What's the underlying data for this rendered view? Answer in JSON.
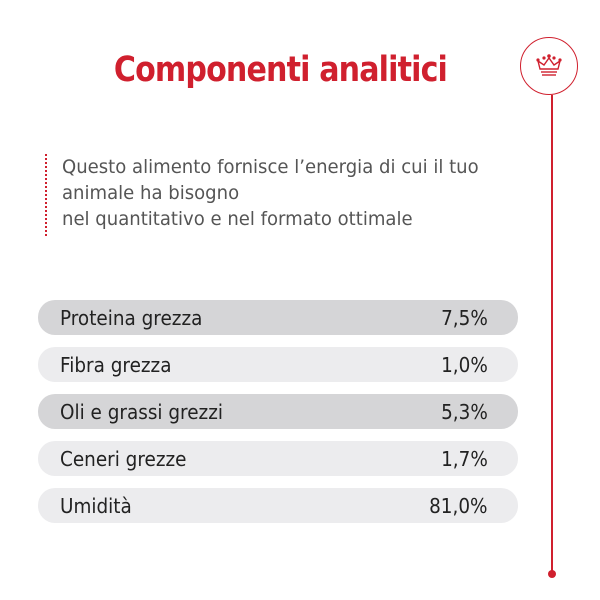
{
  "title": "Componenti analitici",
  "description": [
    "Questo alimento fornisce l’energia di cui il tuo",
    "animale ha bisogno",
    "nel quantitativo e nel formato ottimale"
  ],
  "rows": [
    {
      "label": "Proteina grezza",
      "value": "7,5%"
    },
    {
      "label": "Fibra grezza",
      "value": "1,0%"
    },
    {
      "label": "Oli e grassi grezzi",
      "value": "5,3%"
    },
    {
      "label": "Ceneri grezze",
      "value": "1,7%"
    },
    {
      "label": "Umidità",
      "value": "81,0%"
    }
  ],
  "colors": {
    "accent": "#d0202e",
    "row_dark": "#d5d5d7",
    "row_light": "#ececee"
  },
  "icons": {
    "badge": "crown-icon"
  }
}
